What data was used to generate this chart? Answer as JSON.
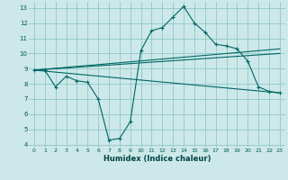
{
  "xlabel": "Humidex (Indice chaleur)",
  "bg_color": "#cce8e8",
  "grid_color": "#99cccc",
  "line_color": "#006666",
  "xlim": [
    -0.5,
    23.5
  ],
  "ylim": [
    3.8,
    13.4
  ],
  "yticks": [
    4,
    5,
    6,
    7,
    8,
    9,
    10,
    11,
    12,
    13
  ],
  "xticks": [
    0,
    1,
    2,
    3,
    4,
    5,
    6,
    7,
    8,
    9,
    10,
    11,
    12,
    13,
    14,
    15,
    16,
    17,
    18,
    19,
    20,
    21,
    22,
    23
  ],
  "series": [
    {
      "x": [
        0,
        1,
        2,
        3,
        4,
        5,
        6,
        7,
        8,
        9,
        10,
        11,
        12,
        13,
        14,
        15,
        16,
        17,
        18,
        19,
        20,
        21,
        22,
        23
      ],
      "y": [
        8.9,
        8.9,
        7.8,
        8.5,
        8.2,
        8.1,
        7.0,
        4.3,
        4.4,
        5.5,
        10.2,
        11.5,
        11.7,
        12.4,
        13.1,
        12.0,
        11.4,
        10.6,
        10.5,
        10.3,
        9.5,
        7.8,
        7.5,
        7.4
      ],
      "marker": "+"
    },
    {
      "x": [
        0,
        23
      ],
      "y": [
        8.9,
        7.4
      ],
      "marker": null
    },
    {
      "x": [
        0,
        23
      ],
      "y": [
        8.9,
        10.0
      ],
      "marker": null
    },
    {
      "x": [
        0,
        23
      ],
      "y": [
        8.9,
        10.3
      ],
      "marker": null
    }
  ]
}
